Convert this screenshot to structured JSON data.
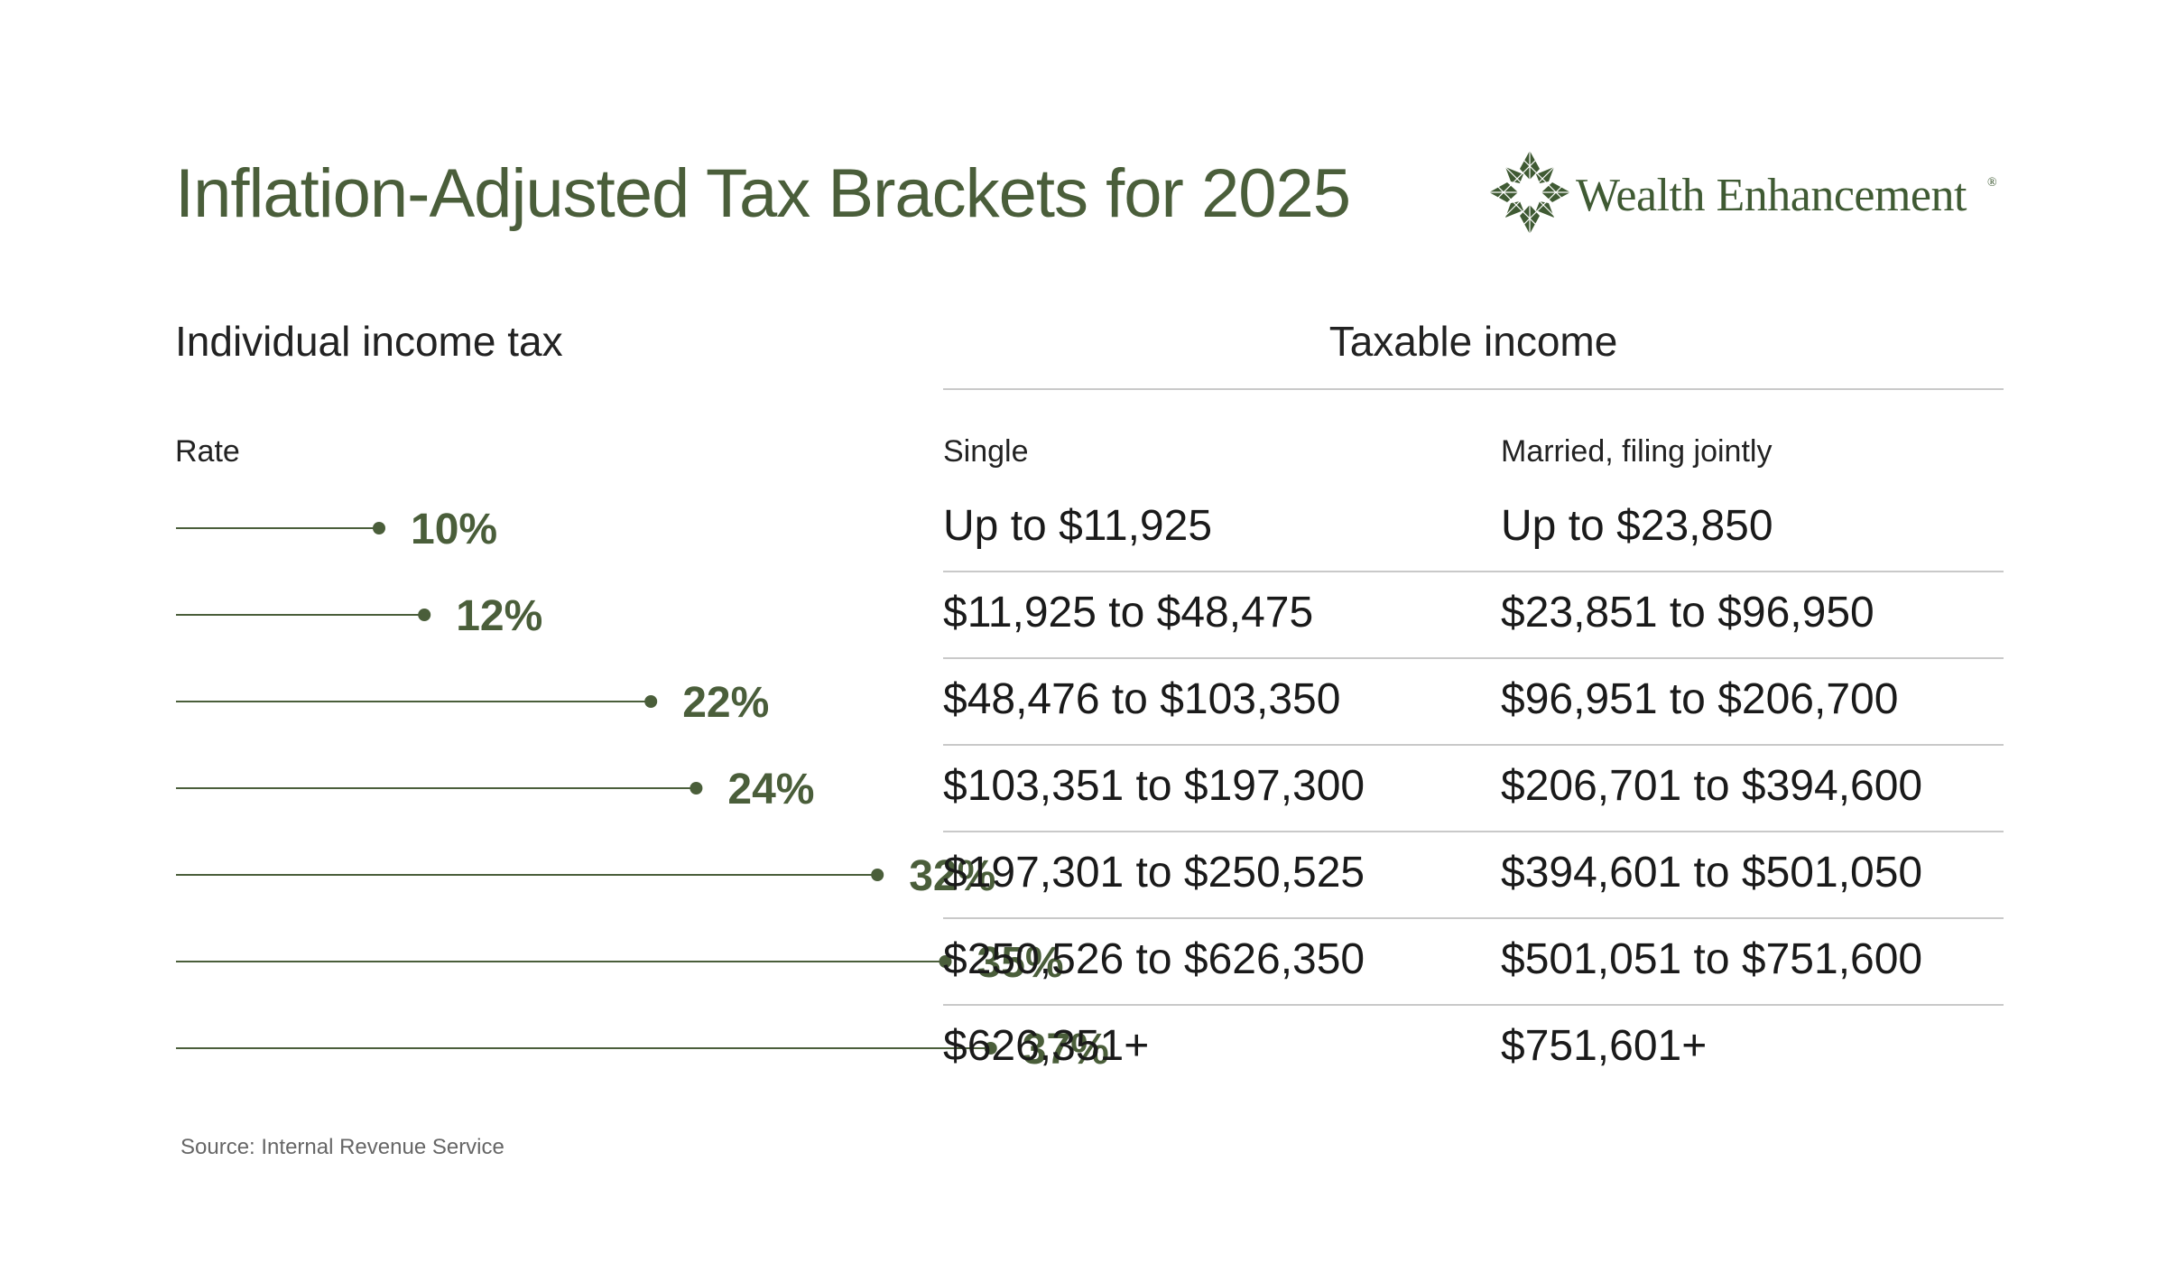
{
  "title": "Inflation-Adjusted Tax Brackets for 2025",
  "logo": {
    "text": "Wealth Enhancement",
    "registered_mark": "®",
    "icon": "wealth-enhancement-mark-icon"
  },
  "colors": {
    "accent": "#4a5e3a",
    "rule": "#c9c9c9",
    "text": "#1a1a1a",
    "muted": "#666666"
  },
  "headers": {
    "left_section": "Individual income tax",
    "right_section": "Taxable income",
    "rate": "Rate",
    "single": "Single",
    "married": "Married, filing jointly"
  },
  "chart_data": {
    "type": "table",
    "x_range": [
      0,
      45
    ],
    "columns": [
      "Rate",
      "Single",
      "Married, filing jointly"
    ],
    "rows": [
      {
        "rate": 10,
        "rate_label": "10%",
        "single": "Up to $11,925",
        "married": "Up to $23,850"
      },
      {
        "rate": 12,
        "rate_label": "12%",
        "single": "$11,925 to $48,475",
        "married": "$23,851 to $96,950"
      },
      {
        "rate": 22,
        "rate_label": "22%",
        "single": "$48,476 to $103,350",
        "married": "$96,951 to $206,700"
      },
      {
        "rate": 24,
        "rate_label": "24%",
        "single": "$103,351 to $197,300",
        "married": "$206,701 to $394,600"
      },
      {
        "rate": 32,
        "rate_label": "32%",
        "single": "$197,301 to $250,525",
        "married": "$394,601 to $501,050"
      },
      {
        "rate": 35,
        "rate_label": "35%",
        "single": "$250,526 to $626,350",
        "married": "$501,051 to $751,600"
      },
      {
        "rate": 37,
        "rate_label": "37%",
        "single": "$626,351+",
        "married": "$751,601+"
      }
    ]
  },
  "source": "Source: Internal Revenue Service"
}
